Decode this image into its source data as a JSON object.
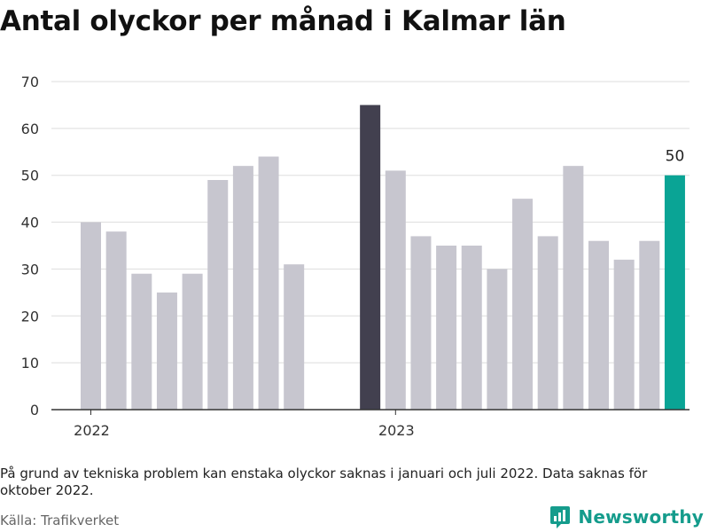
{
  "title": "Antal olyckor per månad i Kalmar län",
  "note": "På grund av tekniska problem kan enstaka olyckor saknas i januari och juli 2022. Data saknas för oktober 2022.",
  "source": "Källa: Trafikverket",
  "brand": {
    "name": "Newsworthy",
    "icon": "newsworthy-logo-icon"
  },
  "colors": {
    "default": "#c7c6cf",
    "highlight_dark": "#42404f",
    "highlight_latest": "#0aa495",
    "gridline": "#dddddd",
    "axis": "#333333"
  },
  "chart_data": {
    "type": "bar",
    "title": "Antal olyckor per månad i Kalmar län",
    "xlabel": "",
    "ylabel": "",
    "ylim": [
      0,
      70
    ],
    "yticks": [
      0,
      10,
      20,
      30,
      40,
      50,
      60,
      70
    ],
    "grid": true,
    "x_tick_labels": [
      {
        "label": "2022",
        "category": "2022-01"
      },
      {
        "label": "2023",
        "category": "2023-01"
      }
    ],
    "categories": [
      "2022-01",
      "2022-02",
      "2022-03",
      "2022-04",
      "2022-05",
      "2022-06",
      "2022-07",
      "2022-08",
      "2022-09",
      "2022-10",
      "2022-11",
      "2022-12",
      "2023-01",
      "2023-02",
      "2023-03",
      "2023-04",
      "2023-05",
      "2023-06",
      "2023-07",
      "2023-08",
      "2023-09",
      "2023-10",
      "2023-11",
      "2023-12"
    ],
    "values": [
      40,
      38,
      29,
      25,
      29,
      49,
      52,
      54,
      31,
      null,
      null,
      65,
      51,
      37,
      35,
      35,
      30,
      45,
      37,
      52,
      36,
      32,
      36,
      50
    ],
    "highlights": [
      {
        "category": "2022-12",
        "color": "#42404f"
      },
      {
        "category": "2023-12",
        "color": "#0aa495",
        "label": "50"
      }
    ]
  }
}
